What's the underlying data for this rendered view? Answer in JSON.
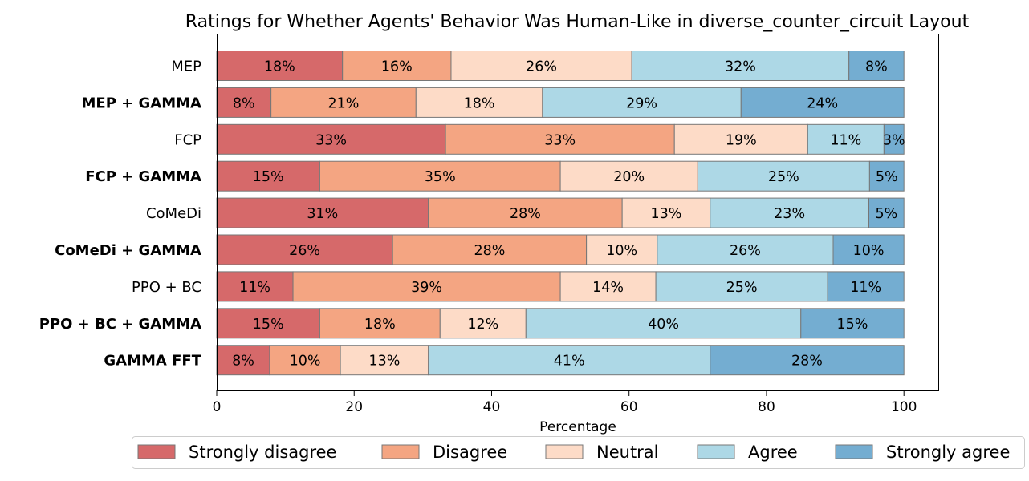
{
  "chart_data": {
    "type": "bar",
    "orientation": "horizontal",
    "stacked": true,
    "title": "Ratings for Whether Agents' Behavior Was Human-Like in diverse_counter_circuit Layout",
    "xlabel": "Percentage",
    "ylabel": "",
    "xlim": [
      0,
      105
    ],
    "xticks": [
      0,
      20,
      40,
      60,
      80,
      100
    ],
    "grid": false,
    "legend_position": "bottom",
    "categories": [
      {
        "label": "MEP",
        "bold": false
      },
      {
        "label": "MEP + GAMMA",
        "bold": true
      },
      {
        "label": "FCP",
        "bold": false
      },
      {
        "label": "FCP + GAMMA",
        "bold": true
      },
      {
        "label": "CoMeDi",
        "bold": false
      },
      {
        "label": "CoMeDi + GAMMA",
        "bold": true
      },
      {
        "label": "PPO + BC",
        "bold": false
      },
      {
        "label": "PPO + BC + GAMMA",
        "bold": true
      },
      {
        "label": "GAMMA FFT",
        "bold": true
      }
    ],
    "series": [
      {
        "name": "Strongly disagree",
        "color": "#d6696a",
        "values": [
          18.3,
          7.9,
          33.3,
          15.0,
          30.8,
          25.6,
          11.1,
          15.0,
          7.7
        ]
      },
      {
        "name": "Disagree",
        "color": "#f4a582",
        "values": [
          15.8,
          21.1,
          33.3,
          35.0,
          28.2,
          28.2,
          38.9,
          17.5,
          10.3
        ]
      },
      {
        "name": "Neutral",
        "color": "#fddbc7",
        "values": [
          26.3,
          18.4,
          19.4,
          20.0,
          12.8,
          10.3,
          13.9,
          12.5,
          12.8
        ]
      },
      {
        "name": "Agree",
        "color": "#add8e6",
        "values": [
          31.6,
          28.9,
          11.1,
          25.0,
          23.1,
          25.6,
          25.0,
          40.0,
          41.0
        ]
      },
      {
        "name": "Strongly agree",
        "color": "#74add1",
        "values": [
          8.0,
          23.7,
          2.9,
          5.0,
          5.1,
          10.3,
          11.1,
          15.0,
          28.2
        ]
      }
    ],
    "data_labels": [
      [
        "18%",
        "16%",
        "26%",
        "32%",
        "8%"
      ],
      [
        "8%",
        "21%",
        "18%",
        "29%",
        "24%"
      ],
      [
        "33%",
        "33%",
        "19%",
        "11%",
        "3%"
      ],
      [
        "15%",
        "35%",
        "20%",
        "25%",
        "5%"
      ],
      [
        "31%",
        "28%",
        "13%",
        "23%",
        "5%"
      ],
      [
        "26%",
        "28%",
        "10%",
        "26%",
        "10%"
      ],
      [
        "11%",
        "39%",
        "14%",
        "25%",
        "11%"
      ],
      [
        "15%",
        "18%",
        "12%",
        "40%",
        "15%"
      ],
      [
        "8%",
        "10%",
        "13%",
        "41%",
        "28%"
      ]
    ]
  }
}
